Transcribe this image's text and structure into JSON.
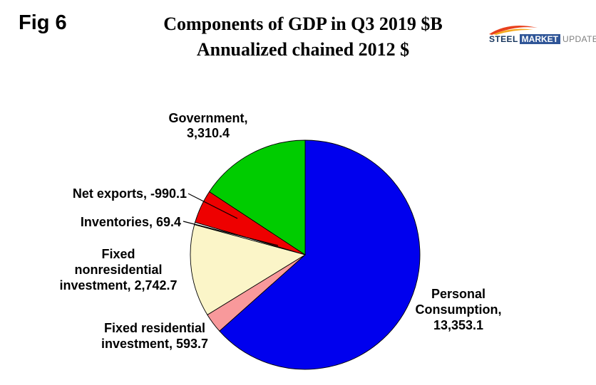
{
  "figure_label": "Fig 6",
  "title": {
    "line1": "Components of GDP in Q3 2019 $B",
    "line2": "Annualized chained 2012 $"
  },
  "logo": {
    "steel": "STEEL",
    "market": "MARKET",
    "update": "UPDATE"
  },
  "chart_data": {
    "type": "pie",
    "title": "Components of GDP in Q3 2019 $B",
    "subtitle": "Annualized chained 2012 $",
    "unit": "$B, annualized chained 2012 $",
    "start_angle_deg": 0,
    "direction": "clockwise",
    "legend_position": "labels-around-pie",
    "slices": [
      {
        "name": "Personal Consumption",
        "value": 13353.1,
        "color": "#0000EE",
        "label": "Personal\nConsumption,\n13,353.1"
      },
      {
        "name": "Fixed residential investment",
        "value": 593.7,
        "color": "#F8999B",
        "label": "Fixed residential\ninvestment, 593.7"
      },
      {
        "name": "Fixed nonresidential investment",
        "value": 2742.7,
        "color": "#FBF5C8",
        "label": "Fixed\nnonresidential\ninvestment, 2,742.7"
      },
      {
        "name": "Inventories",
        "value": 69.4,
        "color": "#FFFFFF",
        "label": "Inventories, 69.4"
      },
      {
        "name": "Net exports",
        "value": -990.1,
        "color": "#EE0000",
        "label": "Net exports, -990.1"
      },
      {
        "name": "Government",
        "value": 3310.4,
        "color": "#00CC00",
        "label": "Government,\n3,310.4"
      }
    ]
  }
}
